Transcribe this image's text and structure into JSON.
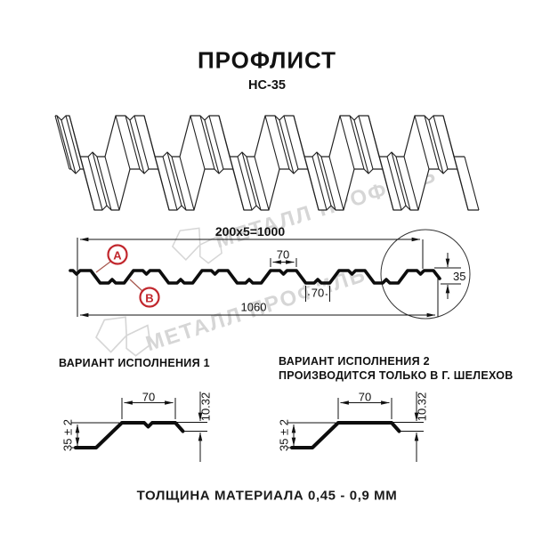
{
  "header": {
    "title": "ПРОФЛИСТ",
    "subtitle": "НС-35"
  },
  "section": {
    "dim_total_top": "200x5=1000",
    "dim_flange_top": "70",
    "dim_flange_bottom": "70",
    "dim_overall_width": "1060",
    "dim_height": "35",
    "callout_a": "A",
    "callout_b": "B"
  },
  "variant1": {
    "heading": "ВАРИАНТ ИСПОЛНЕНИЯ 1",
    "dim_flange": "70",
    "dim_edge_fold": "10.32",
    "dim_height": "35 ± 2"
  },
  "variant2": {
    "heading_line1": "ВАРИАНТ ИСПОЛНЕНИЯ 2",
    "heading_line2": "ПРОИЗВОДИТСЯ ТОЛЬКО В Г. ШЕЛЕХОВ",
    "dim_flange": "70",
    "dim_edge_fold": "10.32",
    "dim_height": "35 ± 2"
  },
  "footer": {
    "thickness_note": "ТОЛЩИНА МАТЕРИАЛА 0,45 - 0,9 ММ"
  },
  "watermark": {
    "text": "МЕТАЛЛ ПРОФИЛЬ"
  },
  "colors": {
    "callout": "#c1272d",
    "leader": "#a85a50",
    "watermark": "#d6d6d6",
    "line": "#1a1a1a"
  }
}
